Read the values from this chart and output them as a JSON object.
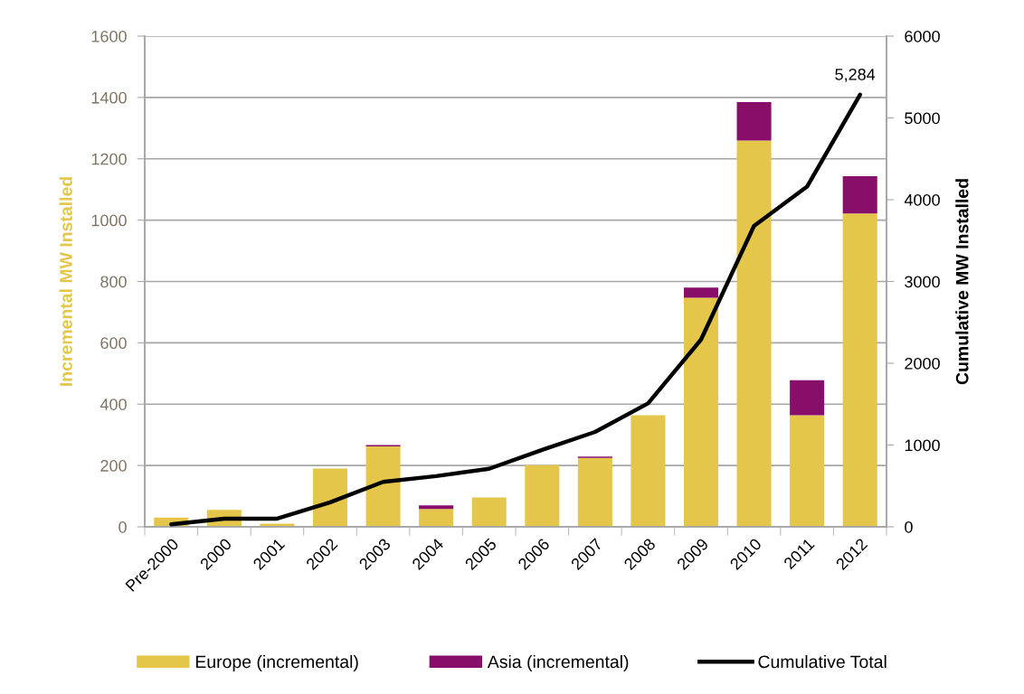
{
  "chart_data": {
    "type": "bar",
    "stacked": true,
    "categories": [
      "Pre-2000",
      "2000",
      "2001",
      "2002",
      "2003",
      "2004",
      "2005",
      "2006",
      "2007",
      "2008",
      "2009",
      "2010",
      "2011",
      "2012"
    ],
    "series": [
      {
        "name": "Europe (incremental)",
        "color": "#e3c64a",
        "values": [
          30,
          55,
          10,
          190,
          262,
          58,
          96,
          201,
          225,
          364,
          747,
          1260,
          364,
          1022
        ]
      },
      {
        "name": "Asia (incremental)",
        "color": "#870f6a",
        "values": [
          0,
          0,
          0,
          0,
          5,
          12,
          0,
          0,
          4,
          0,
          33,
          125,
          114,
          121
        ]
      },
      {
        "name": "Cumulative Total",
        "type": "line",
        "axis": "y2",
        "color": "#000000",
        "marker": "none",
        "line_style": "solid",
        "values": [
          30,
          100,
          100,
          300,
          550,
          620,
          710,
          940,
          1160,
          1510,
          2290,
          3680,
          4160,
          5284
        ],
        "value_labels": [
          null,
          null,
          null,
          null,
          null,
          null,
          null,
          null,
          null,
          null,
          null,
          null,
          null,
          "5,284"
        ]
      }
    ],
    "ylabel": "Incremental MW Installed",
    "y2label": "Cumulative MW Installed",
    "ylim": [
      0,
      1600
    ],
    "yticks": [
      0,
      200,
      400,
      600,
      800,
      1000,
      1200,
      1400,
      1600
    ],
    "y2lim": [
      0,
      6000
    ],
    "y2ticks": [
      0,
      1000,
      2000,
      3000,
      4000,
      5000,
      6000
    ],
    "grid": "y",
    "legend": "bottom"
  }
}
